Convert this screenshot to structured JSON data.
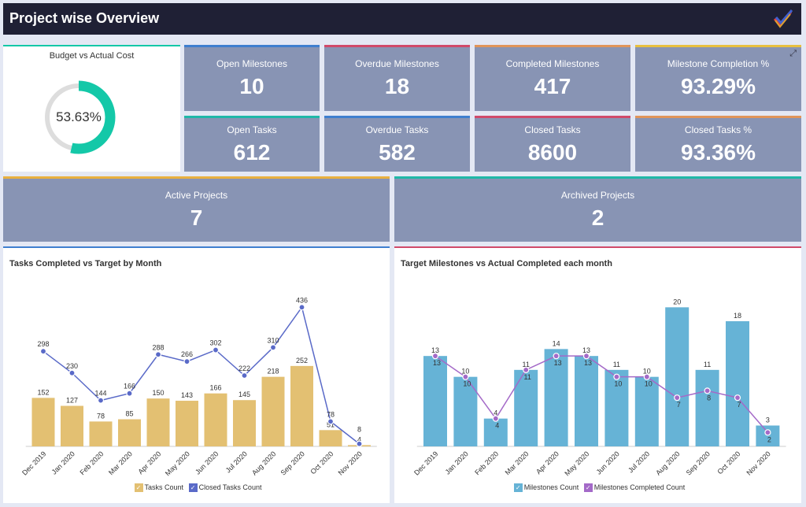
{
  "header": {
    "title": "Project wise Overview",
    "logo_icon": "checkmark-logo-icon"
  },
  "budget": {
    "title": "Budget vs Actual Cost",
    "value": "53.63%",
    "percent": 53.63,
    "color": "#14c8a8",
    "track": "#dddddd"
  },
  "kpis": [
    {
      "label": "Open Milestones",
      "value": "10",
      "accent": "#3f7fcf"
    },
    {
      "label": "Overdue Milestones",
      "value": "18",
      "accent": "#d04a6a"
    },
    {
      "label": "Completed Milestones",
      "value": "417",
      "accent": "#e0955a"
    },
    {
      "label": "Milestone Completion %",
      "value": "93.29%",
      "accent": "#e8c040"
    },
    {
      "label": "Open Tasks",
      "value": "612",
      "accent": "#20b8a8"
    },
    {
      "label": "Overdue Tasks",
      "value": "582",
      "accent": "#3f7fcf"
    },
    {
      "label": "Closed Tasks",
      "value": "8600",
      "accent": "#d04a6a"
    },
    {
      "label": "Closed Tasks %",
      "value": "93.36%",
      "accent": "#e0955a"
    }
  ],
  "projects": [
    {
      "label": "Active Projects",
      "value": "7",
      "accent": "#e8b040"
    },
    {
      "label": "Archived Projects",
      "value": "2",
      "accent": "#20b8a8"
    }
  ],
  "chart_data": [
    {
      "type": "bar",
      "title": "Tasks Completed vs Target by Month",
      "categories": [
        "Dec 2019",
        "Jan 2020",
        "Feb 2020",
        "Mar 2020",
        "Apr 2020",
        "May 2020",
        "Jun 2020",
        "Jul 2020",
        "Aug 2020",
        "Sep 2020",
        "Oct 2020",
        "Nov 2020"
      ],
      "series": [
        {
          "name": "Tasks Count",
          "type": "bar",
          "color": "#e3c072",
          "values": [
            152,
            127,
            78,
            85,
            150,
            143,
            166,
            145,
            218,
            252,
            51,
            4
          ]
        },
        {
          "name": "Closed Tasks Count",
          "type": "line",
          "color": "#5a6ac8",
          "values": [
            298,
            230,
            144,
            166,
            288,
            266,
            302,
            222,
            310,
            436,
            78,
            8
          ]
        }
      ],
      "ylim": [
        0,
        560
      ],
      "legend": "bottom",
      "grid": false
    },
    {
      "type": "bar",
      "title": "Target Milestones vs Actual Completed each month",
      "categories": [
        "Dec 2019",
        "Jan 2020",
        "Feb 2020",
        "Mar 2020",
        "Apr 2020",
        "May 2020",
        "Jun 2020",
        "Jul 2020",
        "Aug 2020",
        "Sep 2020",
        "Oct 2020",
        "Nov 2020"
      ],
      "series": [
        {
          "name": "Milestones Count",
          "type": "bar",
          "color": "#66b3d6",
          "values": [
            13,
            10,
            4,
            11,
            14,
            13,
            11,
            10,
            20,
            11,
            18,
            3
          ]
        },
        {
          "name": "Milestones Completed Count",
          "type": "line",
          "color": "#a46ac8",
          "values": [
            13,
            10,
            4,
            11,
            13,
            13,
            10,
            10,
            7,
            8,
            7,
            2
          ]
        }
      ],
      "ylim": [
        0,
        25.7
      ],
      "legend": "bottom",
      "grid": false
    }
  ]
}
